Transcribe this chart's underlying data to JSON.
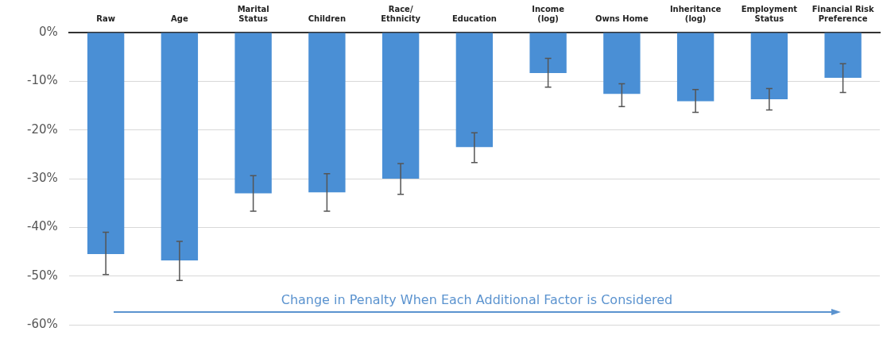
{
  "chart_data": {
    "type": "bar",
    "categories": [
      "Raw",
      "Age",
      "Marital\nStatus",
      "Children",
      "Race/\nEthnicity",
      "Education",
      "Income\n(log)",
      "Owns Home",
      "Inheritance\n(log)",
      "Employment\nStatus",
      "Financial Risk\nPreference"
    ],
    "values": [
      -45.5,
      -46.8,
      -33.0,
      -32.8,
      -30.0,
      -23.5,
      -8.3,
      -12.6,
      -14.1,
      -13.7,
      -9.3
    ],
    "errors": [
      [
        -49.7,
        -41.0
      ],
      [
        -50.9,
        -42.9
      ],
      [
        -36.7,
        -29.4
      ],
      [
        -36.7,
        -29.0
      ],
      [
        -33.2,
        -26.9
      ],
      [
        -26.7,
        -20.6
      ],
      [
        -11.2,
        -5.3
      ],
      [
        -15.2,
        -10.5
      ],
      [
        -16.4,
        -11.7
      ],
      [
        -15.9,
        -11.5
      ],
      [
        -12.3,
        -6.4
      ]
    ],
    "color": "#4a8fd5",
    "ylim": [
      -60,
      0
    ],
    "yticks": [
      {
        "value": 0,
        "label": "0%"
      },
      {
        "value": -10,
        "label": "-10%"
      },
      {
        "value": -20,
        "label": "-20%"
      },
      {
        "value": -30,
        "label": "-30%"
      },
      {
        "value": -40,
        "label": "-40%"
      },
      {
        "value": -50,
        "label": "-50%"
      },
      {
        "value": -60,
        "label": "-60%"
      }
    ],
    "grid": "y",
    "annotations": [
      "Change in Penalty When Each Additional Factor is Considered"
    ]
  }
}
